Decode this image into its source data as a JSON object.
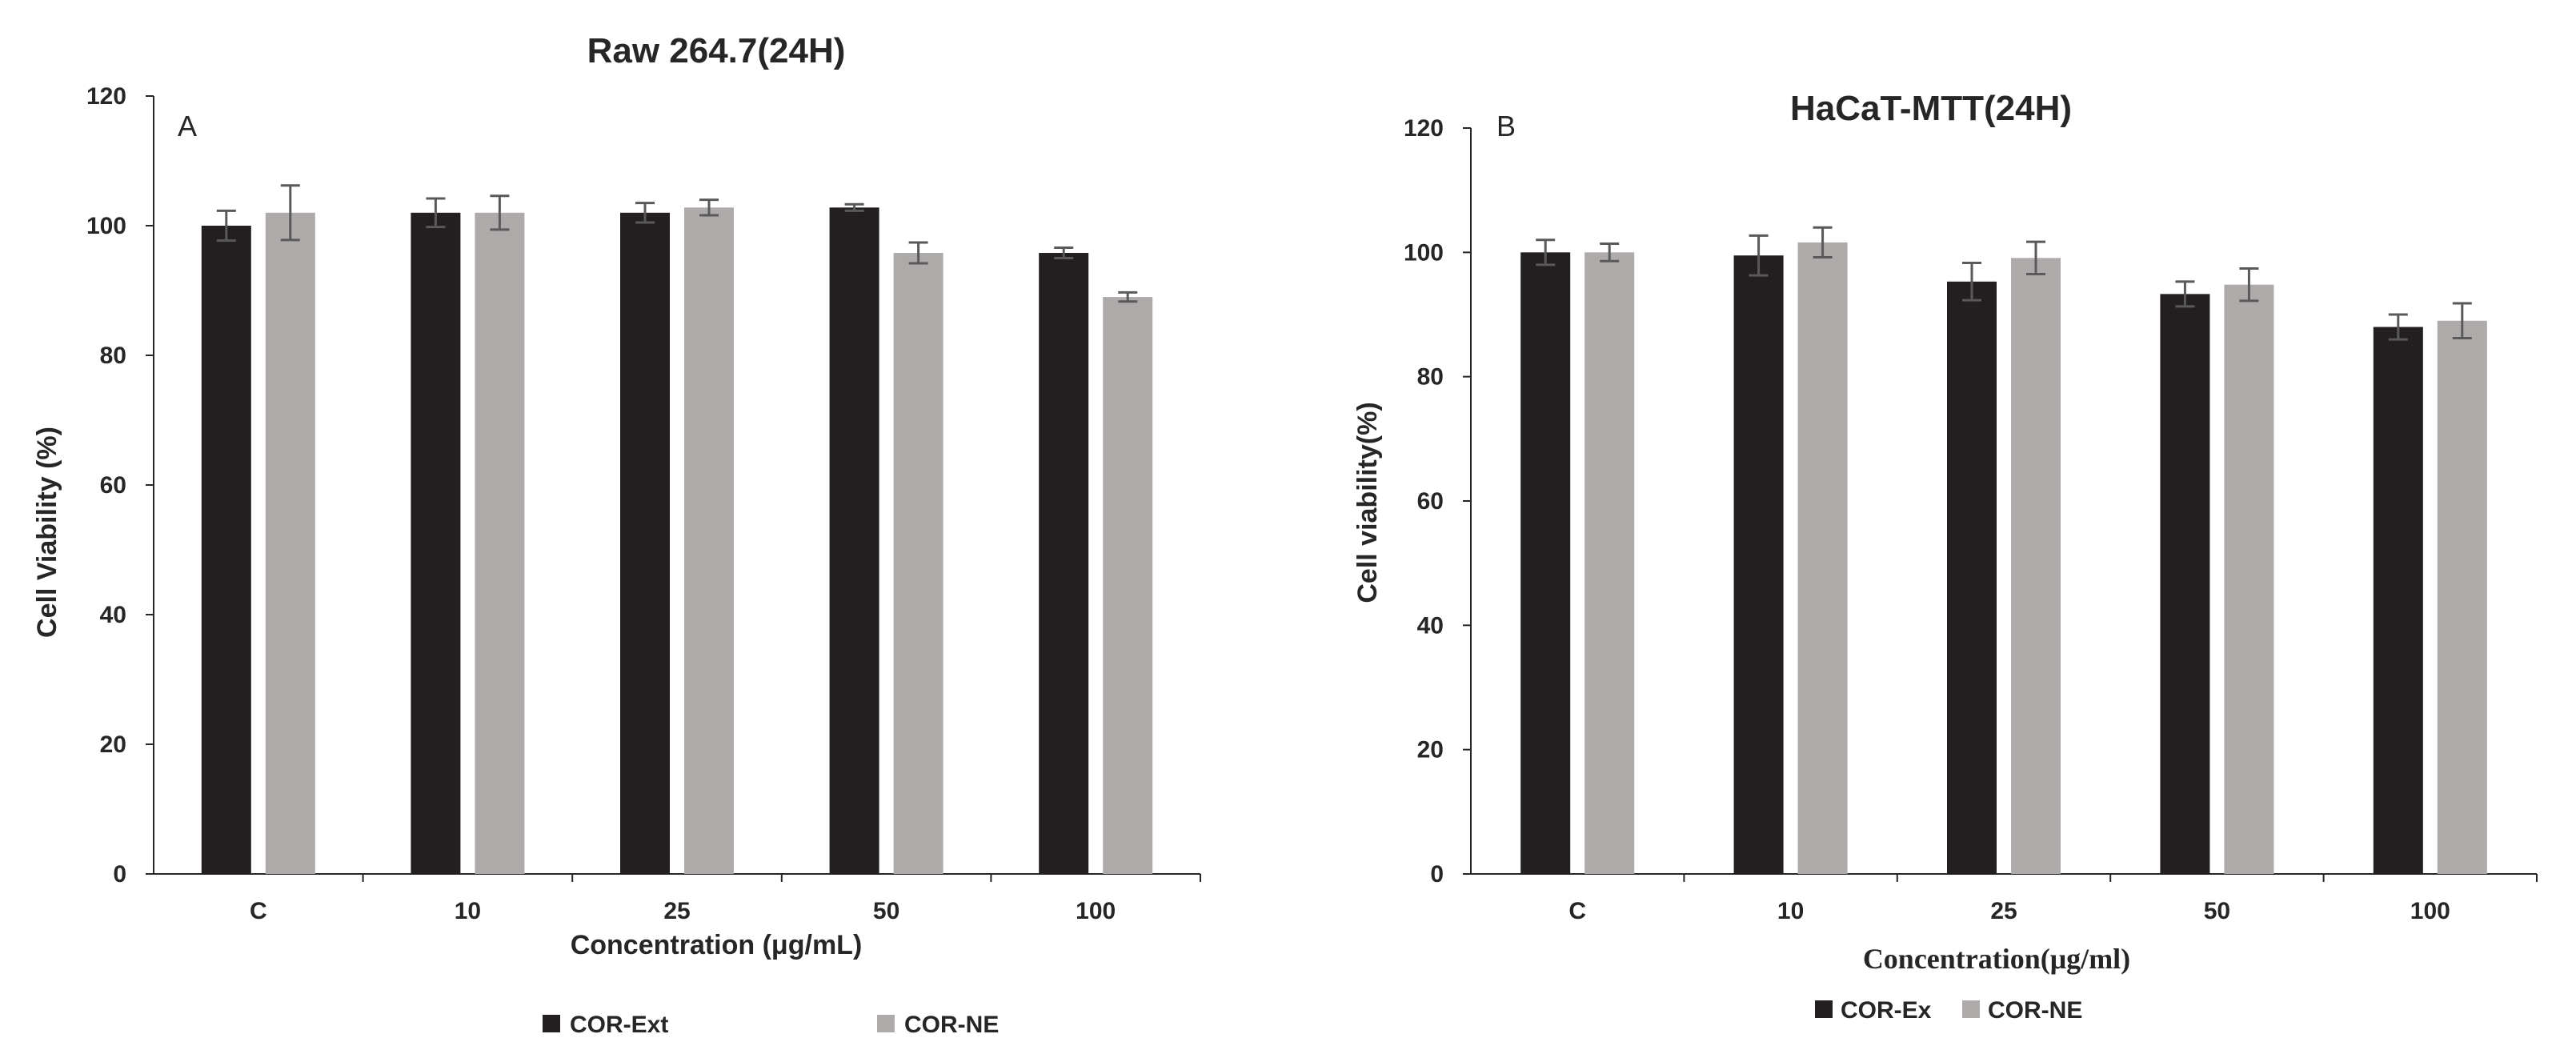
{
  "chart_data": [
    {
      "type": "bar",
      "panel_label": "A",
      "title": "Raw 264.7(24H)",
      "xlabel": "Concentration (μg/mL)",
      "ylabel": "Cell Viability (%)",
      "ylim": [
        0,
        120
      ],
      "yticks": [
        "0",
        "20",
        "40",
        "60",
        "80",
        "100",
        "120"
      ],
      "categories": [
        "C",
        "10",
        "25",
        "50",
        "100"
      ],
      "series": [
        {
          "name": "COR-Ext",
          "color": "#231f20",
          "values": [
            100,
            102,
            102,
            102.8,
            95.8
          ],
          "errors": [
            2.3,
            2.2,
            1.5,
            0.5,
            0.8
          ]
        },
        {
          "name": "COR-NE",
          "color": "#aeaaaa",
          "values": [
            102,
            102,
            102.8,
            95.8,
            89
          ],
          "errors": [
            4.2,
            2.6,
            1.2,
            1.6,
            0.7
          ]
        }
      ],
      "grid": false,
      "legend_position": "bottom"
    },
    {
      "type": "bar",
      "panel_label": "B",
      "title": "HaCaT-MTT(24H)",
      "xlabel": "Concentration(μg/ml)",
      "ylabel": "Cell viability(%)",
      "ylim": [
        0,
        120
      ],
      "yticks": [
        "0",
        "20",
        "40",
        "60",
        "80",
        "100",
        "120"
      ],
      "categories": [
        "C",
        "10",
        "25",
        "50",
        "100"
      ],
      "series": [
        {
          "name": "COR-Ex",
          "color": "#231f20",
          "values": [
            100,
            99.5,
            95.3,
            93.3,
            88
          ],
          "errors": [
            2,
            3.2,
            3,
            2,
            2
          ]
        },
        {
          "name": "COR-NE",
          "color": "#aeaaaa",
          "values": [
            100,
            101.6,
            99.1,
            94.8,
            89
          ],
          "errors": [
            1.4,
            2.4,
            2.6,
            2.6,
            2.8
          ]
        }
      ],
      "grid": false,
      "legend_position": "bottom"
    }
  ]
}
